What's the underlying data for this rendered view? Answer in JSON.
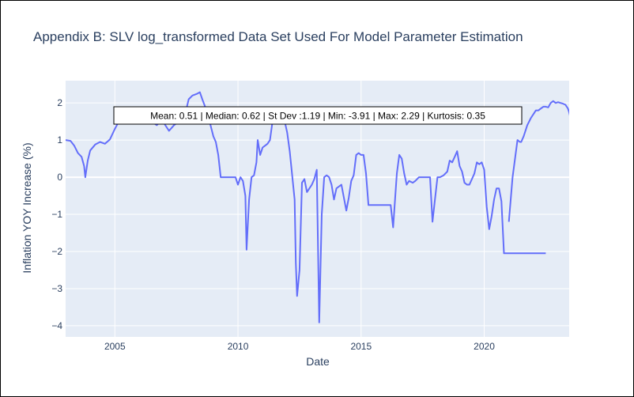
{
  "chart_data": {
    "type": "line",
    "title": "Appendix B: SLV log_transformed Data Set Used For Model Parameter Estimation",
    "xlabel": "Date",
    "ylabel": "Inflation YOY Increase (%)",
    "xlim": [
      2003.0,
      2023.45
    ],
    "ylim": [
      -4.3,
      2.6
    ],
    "x_ticks": [
      2005,
      2010,
      2015,
      2020
    ],
    "y_ticks": [
      -4,
      -3,
      -2,
      -1,
      0,
      1,
      2
    ],
    "grid": true,
    "series": [
      {
        "color": "#636efa",
        "segments": [
          [
            [
              2003.0,
              1.0
            ],
            [
              2003.2,
              0.98
            ],
            [
              2003.35,
              0.85
            ],
            [
              2003.5,
              0.65
            ],
            [
              2003.65,
              0.55
            ],
            [
              2003.75,
              0.3
            ],
            [
              2003.8,
              0.0
            ],
            [
              2003.9,
              0.45
            ],
            [
              2004.0,
              0.72
            ],
            [
              2004.2,
              0.88
            ],
            [
              2004.4,
              0.95
            ],
            [
              2004.6,
              0.9
            ],
            [
              2004.8,
              1.02
            ],
            [
              2005.0,
              1.3
            ],
            [
              2005.2,
              1.55
            ],
            [
              2005.3,
              1.5
            ],
            [
              2005.4,
              1.65
            ],
            [
              2005.6,
              1.65
            ],
            [
              2005.8,
              1.7
            ],
            [
              2006.0,
              1.65
            ],
            [
              2006.2,
              1.55
            ],
            [
              2006.4,
              1.6
            ],
            [
              2006.6,
              1.45
            ],
            [
              2006.7,
              1.4
            ],
            [
              2006.85,
              1.5
            ],
            [
              2007.0,
              1.45
            ],
            [
              2007.2,
              1.25
            ],
            [
              2007.4,
              1.4
            ],
            [
              2007.6,
              1.5
            ],
            [
              2007.8,
              1.55
            ],
            [
              2008.0,
              2.1
            ],
            [
              2008.15,
              2.2
            ],
            [
              2008.35,
              2.25
            ],
            [
              2008.45,
              2.29
            ],
            [
              2008.55,
              2.1
            ],
            [
              2008.75,
              1.75
            ],
            [
              2009.0,
              1.1
            ],
            [
              2009.1,
              0.95
            ],
            [
              2009.2,
              0.6
            ],
            [
              2009.3,
              0.0
            ],
            [
              2009.5,
              0.0
            ],
            [
              2009.7,
              0.0
            ],
            [
              2009.9,
              0.0
            ],
            [
              2010.0,
              -0.2
            ],
            [
              2010.1,
              0.0
            ],
            [
              2010.2,
              -0.1
            ],
            [
              2010.3,
              -0.5
            ],
            [
              2010.35,
              -1.95
            ],
            [
              2010.45,
              -0.6
            ],
            [
              2010.55,
              0.0
            ],
            [
              2010.65,
              0.05
            ],
            [
              2010.75,
              0.4
            ],
            [
              2010.8,
              1.0
            ],
            [
              2010.9,
              0.6
            ],
            [
              2011.0,
              0.8
            ],
            [
              2011.1,
              0.85
            ],
            [
              2011.2,
              0.9
            ],
            [
              2011.3,
              1.0
            ],
            [
              2011.4,
              1.5
            ],
            [
              2011.5,
              1.55
            ],
            [
              2011.6,
              1.6
            ],
            [
              2011.7,
              1.6
            ],
            [
              2011.8,
              1.6
            ],
            [
              2011.9,
              1.5
            ],
            [
              2012.0,
              1.2
            ],
            [
              2012.1,
              0.7
            ],
            [
              2012.3,
              -0.6
            ],
            [
              2012.35,
              -2.3
            ],
            [
              2012.4,
              -3.2
            ],
            [
              2012.5,
              -2.5
            ],
            [
              2012.6,
              -0.15
            ],
            [
              2012.7,
              -0.05
            ],
            [
              2012.8,
              -0.4
            ],
            [
              2012.9,
              -0.3
            ],
            [
              2013.0,
              -0.2
            ],
            [
              2013.1,
              -0.05
            ],
            [
              2013.2,
              0.2
            ],
            [
              2013.3,
              -3.91
            ],
            [
              2013.4,
              -1.0
            ],
            [
              2013.5,
              0.0
            ],
            [
              2013.6,
              0.05
            ],
            [
              2013.7,
              0.0
            ],
            [
              2013.8,
              -0.2
            ],
            [
              2013.9,
              -0.6
            ],
            [
              2014.0,
              -0.3
            ],
            [
              2014.2,
              -0.2
            ],
            [
              2014.3,
              -0.55
            ],
            [
              2014.4,
              -0.9
            ],
            [
              2014.5,
              -0.55
            ],
            [
              2014.6,
              -0.1
            ],
            [
              2014.7,
              0.05
            ],
            [
              2014.8,
              0.6
            ],
            [
              2014.9,
              0.65
            ],
            [
              2015.0,
              0.6
            ],
            [
              2015.1,
              0.6
            ],
            [
              2015.2,
              0.1
            ],
            [
              2015.3,
              -0.75
            ],
            [
              2015.5,
              -0.75
            ],
            [
              2015.7,
              -0.75
            ],
            [
              2015.9,
              -0.75
            ],
            [
              2016.0,
              -0.75
            ],
            [
              2016.2,
              -0.75
            ],
            [
              2016.3,
              -1.35
            ],
            [
              2016.45,
              0.1
            ],
            [
              2016.55,
              0.6
            ],
            [
              2016.65,
              0.5
            ],
            [
              2016.75,
              0.1
            ],
            [
              2016.85,
              -0.2
            ],
            [
              2016.95,
              -0.1
            ],
            [
              2017.1,
              -0.15
            ],
            [
              2017.2,
              -0.1
            ],
            [
              2017.35,
              0.0
            ],
            [
              2017.5,
              0.0
            ],
            [
              2017.65,
              0.0
            ],
            [
              2017.8,
              0.0
            ],
            [
              2017.9,
              -1.2
            ],
            [
              2018.0,
              -0.6
            ],
            [
              2018.1,
              0.0
            ],
            [
              2018.2,
              0.0
            ],
            [
              2018.35,
              0.05
            ],
            [
              2018.5,
              0.15
            ],
            [
              2018.6,
              0.45
            ],
            [
              2018.7,
              0.4
            ],
            [
              2018.8,
              0.55
            ],
            [
              2018.9,
              0.7
            ],
            [
              2019.0,
              0.3
            ],
            [
              2019.1,
              0.15
            ],
            [
              2019.2,
              -0.15
            ],
            [
              2019.3,
              -0.2
            ],
            [
              2019.4,
              -0.2
            ],
            [
              2019.5,
              -0.05
            ],
            [
              2019.6,
              0.1
            ],
            [
              2019.7,
              0.4
            ],
            [
              2019.8,
              0.35
            ],
            [
              2019.9,
              0.4
            ],
            [
              2020.0,
              0.2
            ],
            [
              2020.1,
              -0.8
            ],
            [
              2020.2,
              -1.4
            ],
            [
              2020.3,
              -1.05
            ],
            [
              2020.4,
              -0.6
            ],
            [
              2020.5,
              -0.3
            ],
            [
              2020.6,
              -0.3
            ],
            [
              2020.7,
              -0.65
            ],
            [
              2020.8,
              -2.05
            ],
            [
              2021.0,
              -2.05
            ],
            [
              2021.3,
              -2.05
            ],
            [
              2021.5,
              -2.05
            ],
            [
              2021.8,
              -2.05
            ],
            [
              2022.0,
              -2.05
            ],
            [
              2022.2,
              -2.05
            ],
            [
              2022.5,
              -2.05
            ]
          ],
          [
            [
              2021.0,
              -1.2
            ],
            [
              2021.15,
              0.0
            ],
            [
              2021.35,
              1.0
            ],
            [
              2021.45,
              0.95
            ],
            [
              2021.5,
              0.95
            ],
            [
              2021.6,
              1.1
            ],
            [
              2021.75,
              1.4
            ],
            [
              2021.9,
              1.6
            ],
            [
              2022.0,
              1.7
            ],
            [
              2022.1,
              1.8
            ],
            [
              2022.2,
              1.8
            ],
            [
              2022.3,
              1.85
            ],
            [
              2022.4,
              1.9
            ],
            [
              2022.5,
              1.9
            ],
            [
              2022.6,
              1.88
            ],
            [
              2022.7,
              2.0
            ],
            [
              2022.8,
              2.05
            ],
            [
              2022.9,
              2.0
            ],
            [
              2023.0,
              2.02
            ],
            [
              2023.1,
              2.0
            ],
            [
              2023.2,
              1.98
            ],
            [
              2023.3,
              1.95
            ],
            [
              2023.35,
              1.9
            ],
            [
              2023.4,
              1.85
            ],
            [
              2023.45,
              1.75
            ],
            [
              2023.5,
              1.6
            ],
            [
              2023.55,
              1.45
            ],
            [
              2023.6,
              1.35
            ]
          ]
        ]
      }
    ],
    "annotation": "Mean: 0.51 | Median: 0.62 | St Dev :1.19 | Min: -3.91 | Max: 2.29 | Kurtosis: 0.35"
  }
}
